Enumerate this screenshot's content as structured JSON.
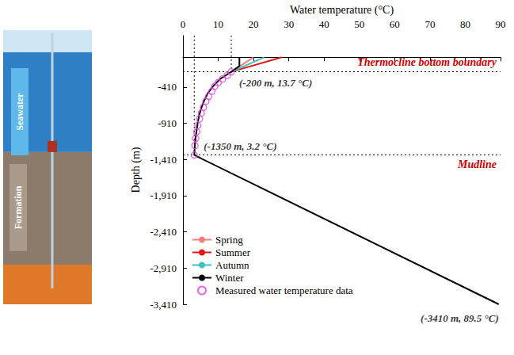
{
  "chart_data": {
    "type": "line",
    "xlabel": "Water temperature (°C)",
    "ylabel": "Depth (m)",
    "xlim": [
      0,
      90
    ],
    "xticks": [
      0,
      10,
      20,
      30,
      40,
      50,
      60,
      70,
      80,
      90
    ],
    "ylim": [
      -3410,
      300
    ],
    "yticks": [
      -410,
      -910,
      -1410,
      -1910,
      -2410,
      -2910,
      -3410
    ],
    "grid": false,
    "legend": "lower left",
    "series": [
      {
        "name": "Spring",
        "color": "#f08080",
        "type": "line",
        "x": [
          20,
          13.7
        ],
        "y": [
          0,
          -200
        ]
      },
      {
        "name": "Summer",
        "color": "#e01818",
        "type": "line",
        "x": [
          28,
          13.7
        ],
        "y": [
          0,
          -200
        ]
      },
      {
        "name": "Autumn",
        "color": "#3cc0c0",
        "type": "line",
        "x": [
          23,
          13.7
        ],
        "y": [
          0,
          -200
        ]
      },
      {
        "name": "Winter",
        "color": "#000000",
        "type": "line",
        "x": [
          16,
          16,
          13.7,
          10.5,
          8.5,
          7,
          6,
          5.2,
          4.6,
          4.2,
          3.9,
          3.6,
          3.4,
          3.2,
          89.5
        ],
        "y": [
          0,
          -120,
          -200,
          -300,
          -400,
          -500,
          -600,
          -700,
          -800,
          -900,
          -1000,
          -1100,
          -1200,
          -1350,
          -3410
        ]
      },
      {
        "name": "Measured water temperature data",
        "color": "#e040e0",
        "type": "scatter",
        "marker": "circle_open",
        "x": [
          13.7,
          12.5,
          11.2,
          10,
          9,
          8.2,
          7.3,
          6.5,
          5.8,
          5.2,
          4.7,
          4.2,
          3.9,
          3.6,
          3.4,
          3.2
        ],
        "y": [
          -200,
          -250,
          -300,
          -350,
          -400,
          -470,
          -540,
          -610,
          -690,
          -770,
          -850,
          -940,
          -1030,
          -1120,
          -1220,
          -1350
        ]
      }
    ],
    "reference_lines": {
      "horizontal": [
        {
          "y": -200,
          "label": "Thermocline bottom boundary"
        },
        {
          "y": -1350,
          "label": "Mudline"
        }
      ],
      "vertical": [
        {
          "x": 3.2,
          "y_end": -1350
        },
        {
          "x": 13.7,
          "y_end": -200
        }
      ]
    },
    "annotations": [
      {
        "text": "(-200 m, 13.7 °C)",
        "x": 13.7,
        "y": -200
      },
      {
        "text": "(-1350 m, 3.2 °C)",
        "x": 3.2,
        "y": -1350
      },
      {
        "text": "(-3410 m, 89.5 °C)",
        "x": 89.5,
        "y": -3410
      }
    ]
  },
  "illustration": {
    "labels": [
      "Seawater",
      "Formation"
    ]
  }
}
